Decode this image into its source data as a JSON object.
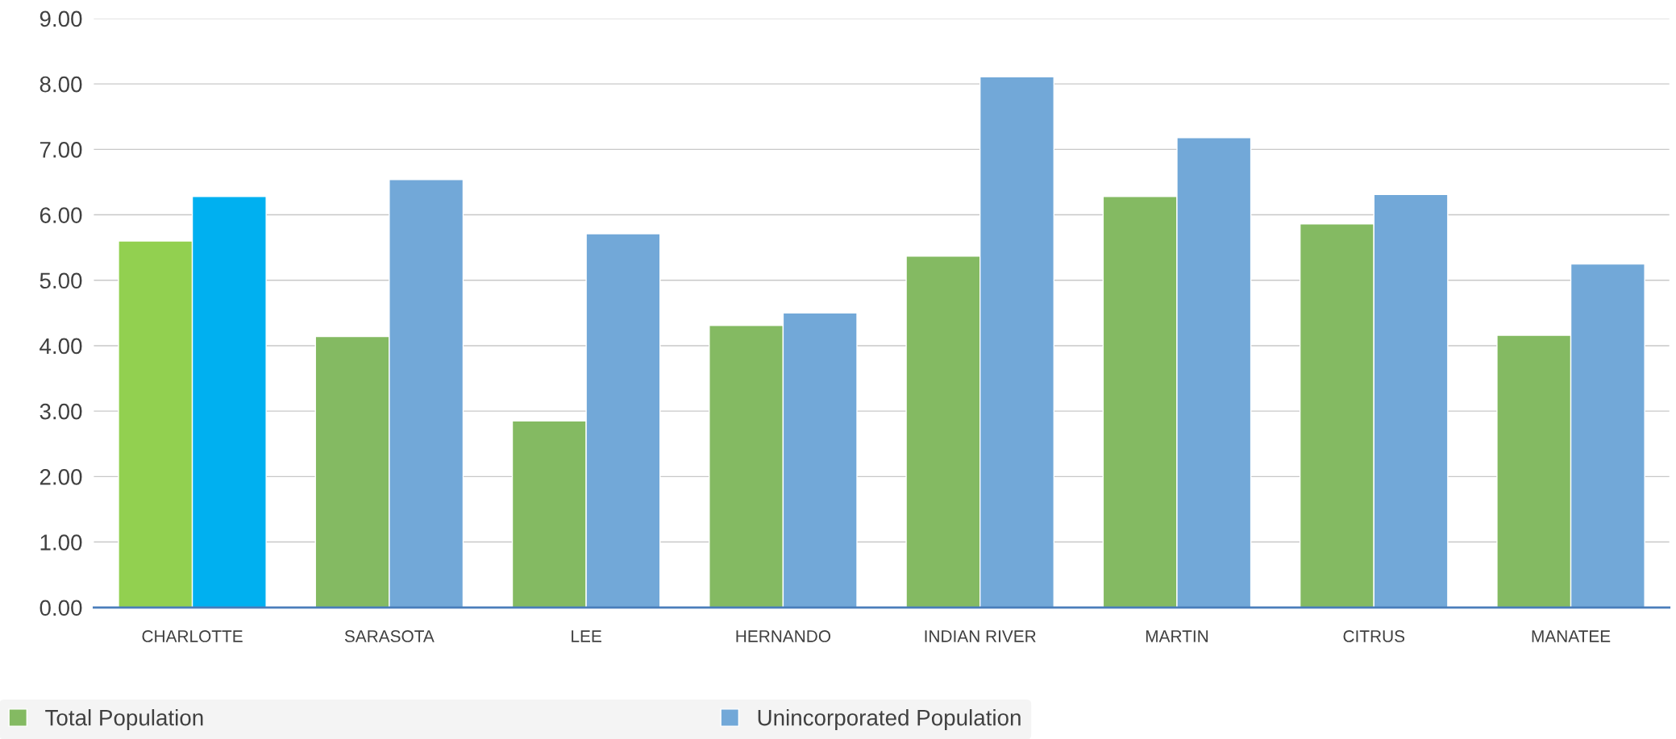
{
  "chart_data": {
    "type": "bar",
    "categories": [
      "CHARLOTTE",
      "SARASOTA",
      "LEE",
      "HERNANDO",
      "INDIAN RIVER",
      "MARTIN",
      "CITRUS",
      "MANATEE"
    ],
    "series": [
      {
        "name": "Total Population",
        "color": "#84ba62",
        "colors": [
          "#92d050",
          "#84ba62",
          "#84ba62",
          "#84ba62",
          "#84ba62",
          "#84ba62",
          "#84ba62",
          "#84ba62"
        ],
        "values": [
          5.6,
          4.14,
          2.85,
          4.31,
          5.37,
          6.28,
          5.86,
          4.16
        ]
      },
      {
        "name": "Unincorporated Population",
        "color": "#72a8d8",
        "colors": [
          "#00b0f0",
          "#72a8d8",
          "#72a8d8",
          "#72a8d8",
          "#72a8d8",
          "#72a8d8",
          "#72a8d8",
          "#72a8d8"
        ],
        "values": [
          6.28,
          6.54,
          5.71,
          4.5,
          8.11,
          7.18,
          6.31,
          5.25
        ]
      }
    ],
    "ylim": [
      0,
      9
    ],
    "yticks": [
      {
        "value": 0,
        "label": "0.00"
      },
      {
        "value": 1,
        "label": "1.00"
      },
      {
        "value": 2,
        "label": "2.00"
      },
      {
        "value": 3,
        "label": "3.00"
      },
      {
        "value": 4,
        "label": "4.00"
      },
      {
        "value": 5,
        "label": "5.00"
      },
      {
        "value": 6,
        "label": "6.00"
      },
      {
        "value": 7,
        "label": "7.00"
      },
      {
        "value": 8,
        "label": "8.00"
      },
      {
        "value": 9,
        "label": "9.00"
      }
    ],
    "grid": "y",
    "legend": "bottom left"
  }
}
